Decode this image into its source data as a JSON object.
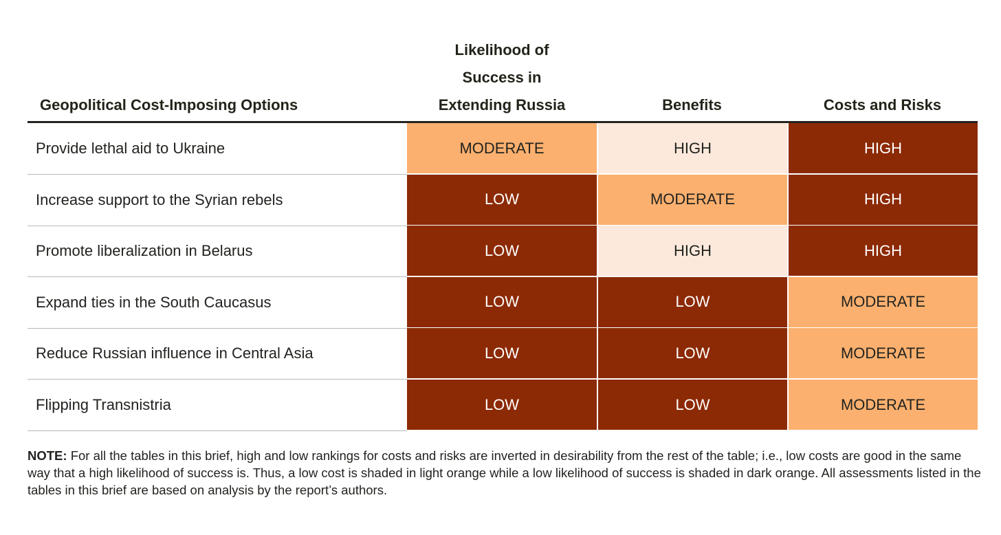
{
  "headers": {
    "option": "Geopolitical Cost-Imposing Options",
    "likelihood_l1": "Likelihood of",
    "likelihood_l2": "Success in",
    "likelihood_l3": "Extending Russia",
    "benefits": "Benefits",
    "costs": "Costs and Risks"
  },
  "colors": {
    "dark": "#8c2a05",
    "moderate": "#fbb06f",
    "light": "#fde9dc"
  },
  "rows": [
    {
      "option": "Provide lethal aid to Ukraine",
      "likelihood": "MODERATE",
      "benefits": "HIGH",
      "costs": "HIGH"
    },
    {
      "option": "Increase support to the Syrian rebels",
      "likelihood": "LOW",
      "benefits": "MODERATE",
      "costs": "HIGH"
    },
    {
      "option": "Promote liberalization in Belarus",
      "likelihood": "LOW",
      "benefits": "HIGH",
      "costs": "HIGH"
    },
    {
      "option": "Expand ties in the South Caucasus",
      "likelihood": "LOW",
      "benefits": "LOW",
      "costs": "MODERATE"
    },
    {
      "option": "Reduce Russian influence in Central Asia",
      "likelihood": "LOW",
      "benefits": "LOW",
      "costs": "MODERATE"
    },
    {
      "option": "Flipping Transnistria",
      "likelihood": "LOW",
      "benefits": "LOW",
      "costs": "MODERATE"
    }
  ],
  "note": {
    "label": "NOTE:",
    "text": "For all the tables in this brief, high and low rankings for costs and risks are inverted in desirability from the rest of the table; i.e., low costs are good in the same way that a high likelihood of success is. Thus, a low cost is shaded in light orange while a low likelihood of success is shaded in dark orange. All assessments listed in the tables in this brief are based on analysis by the report’s authors."
  }
}
